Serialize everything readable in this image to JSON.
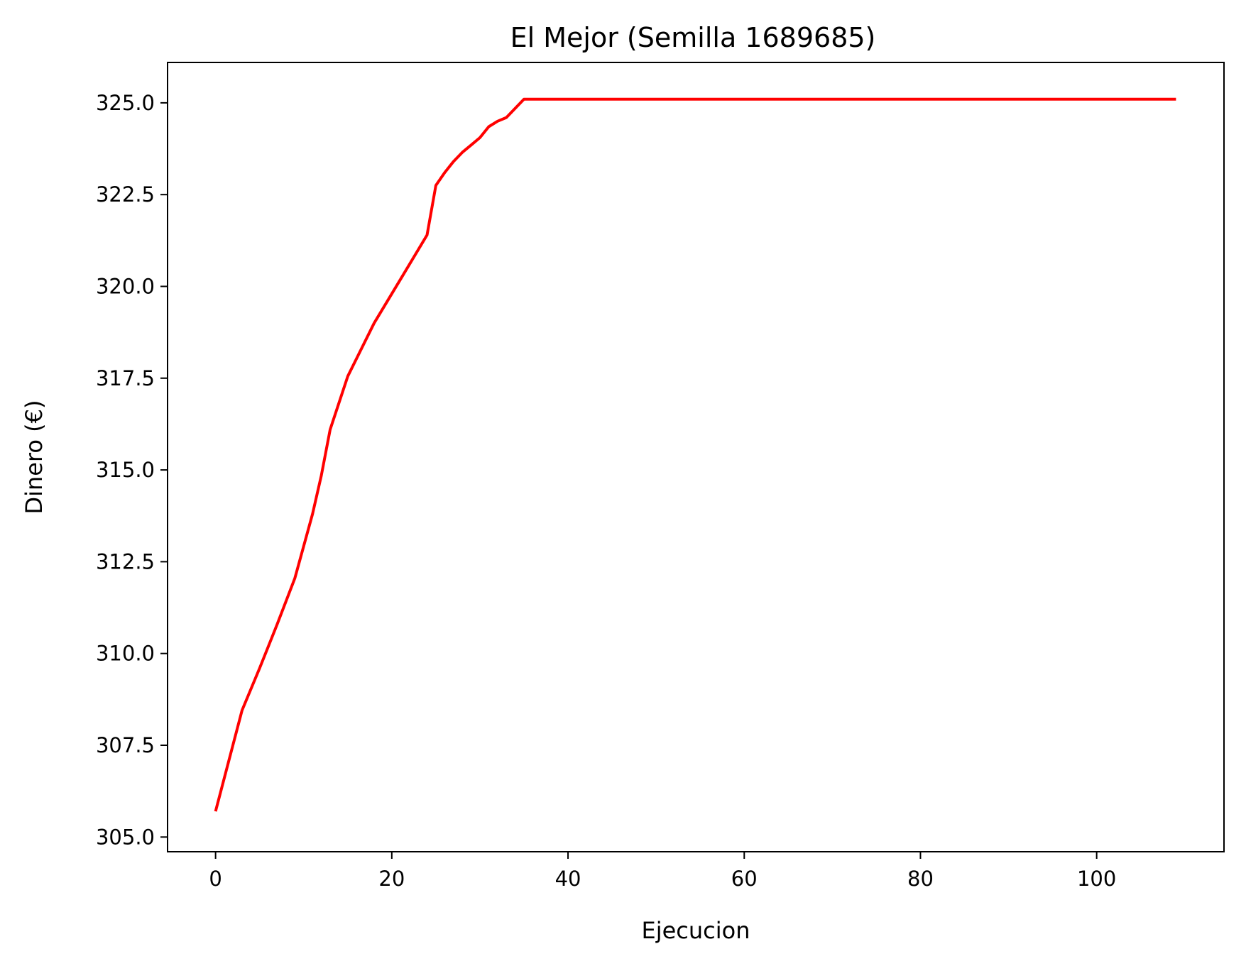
{
  "chart_data": {
    "type": "line",
    "title": "El Mejor (Semilla 1689685)",
    "xlabel": "Ejecucion",
    "ylabel": "Dinero (€)",
    "xlim": [
      -5.45,
      114.45
    ],
    "ylim": [
      304.6,
      326.1
    ],
    "x_ticks": [
      0,
      20,
      40,
      60,
      80,
      100
    ],
    "x_tick_labels": [
      "0",
      "20",
      "40",
      "60",
      "80",
      "100"
    ],
    "y_ticks": [
      305.0,
      307.5,
      310.0,
      312.5,
      315.0,
      317.5,
      320.0,
      322.5,
      325.0
    ],
    "y_tick_labels": [
      "305.0",
      "307.5",
      "310.0",
      "312.5",
      "315.0",
      "317.5",
      "320.0",
      "322.5",
      "325.0"
    ],
    "grid": false,
    "series": [
      {
        "color": "#ff0000",
        "x": [
          0,
          3,
          5,
          7,
          9,
          11,
          12,
          13,
          15,
          18,
          21,
          24,
          25,
          26,
          27,
          28,
          29,
          30,
          31,
          32,
          33,
          35,
          109
        ],
        "y": [
          305.7,
          308.45,
          309.6,
          310.8,
          312.05,
          313.8,
          314.85,
          316.1,
          317.55,
          319.0,
          320.2,
          321.4,
          322.75,
          323.1,
          323.4,
          323.65,
          323.85,
          324.05,
          324.35,
          324.5,
          324.6,
          325.1,
          325.1
        ]
      }
    ]
  }
}
